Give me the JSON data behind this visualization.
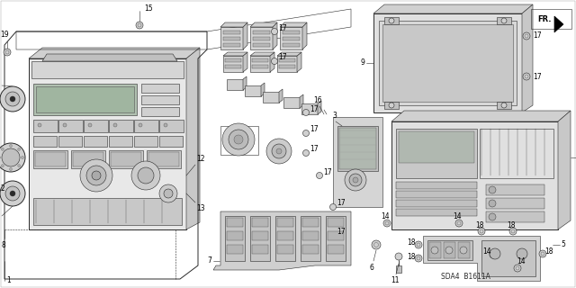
{
  "bg": "#f0f0f0",
  "fg": "#1a1a1a",
  "fig_w": 6.4,
  "fig_h": 3.2,
  "dpi": 100,
  "diagram_id": "SDA4 B1611A"
}
